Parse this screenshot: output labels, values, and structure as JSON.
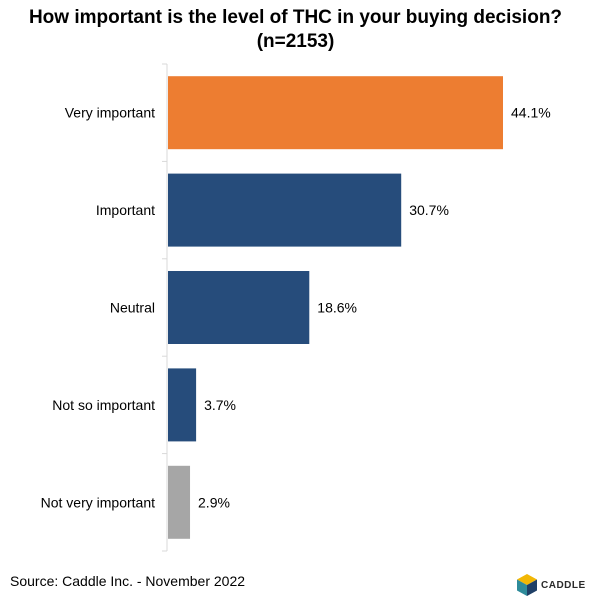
{
  "chart_data": {
    "type": "bar",
    "orientation": "horizontal",
    "title": "How important is the level of THC in your buying decision? (n=2153)",
    "categories": [
      "Very important",
      "Important",
      "Neutral",
      "Not so important",
      "Not very important"
    ],
    "values": [
      44.1,
      30.7,
      18.6,
      3.7,
      2.9
    ],
    "value_labels": [
      "44.1%",
      "30.7%",
      "18.6%",
      "3.7%",
      "2.9%"
    ],
    "bar_colors": [
      "#ED7D31",
      "#264C7B",
      "#264C7B",
      "#264C7B",
      "#A6A6A6"
    ],
    "xlim": [
      0,
      50
    ],
    "grid": false,
    "legend": "none"
  },
  "footer": {
    "source": "Source: Caddle Inc. - November 2022",
    "brand": "CADDLE"
  },
  "colors": {
    "axis": "#D9D9D9",
    "logo_yellow": "#F2B705",
    "logo_teal": "#2E8B9A",
    "logo_navy": "#1F3F66"
  }
}
